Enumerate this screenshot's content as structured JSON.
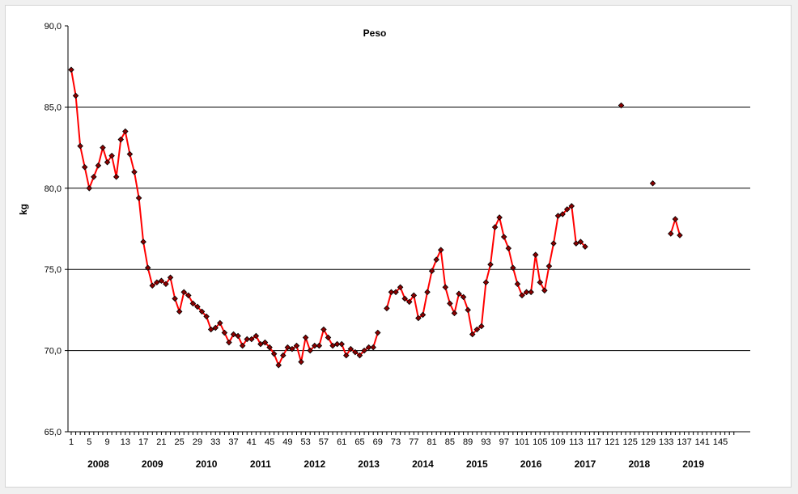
{
  "chart_data": {
    "type": "line",
    "title": "Peso",
    "ylabel": "kg",
    "xlabel": "",
    "ylim": [
      65,
      90
    ],
    "ytick_labels": [
      "65,0",
      "70,0",
      "75,0",
      "80,0",
      "85,0",
      "90,0"
    ],
    "ytick_values": [
      65,
      70,
      75,
      80,
      85,
      90
    ],
    "gridlines": [
      70,
      75,
      80,
      85
    ],
    "grid": true,
    "legend": "none",
    "xlim": [
      1,
      148
    ],
    "xtick_labels": [
      "1",
      "5",
      "9",
      "13",
      "17",
      "21",
      "25",
      "29",
      "33",
      "37",
      "41",
      "45",
      "49",
      "53",
      "57",
      "61",
      "65",
      "69",
      "73",
      "77",
      "81",
      "85",
      "89",
      "93",
      "97",
      "101",
      "105",
      "109",
      "113",
      "117",
      "121",
      "125",
      "129",
      "133",
      "137",
      "141",
      "145"
    ],
    "year_labels": [
      {
        "label": "2008",
        "x": 7
      },
      {
        "label": "2009",
        "x": 19
      },
      {
        "label": "2010",
        "x": 31
      },
      {
        "label": "2011",
        "x": 43
      },
      {
        "label": "2012",
        "x": 55
      },
      {
        "label": "2013",
        "x": 67
      },
      {
        "label": "2014",
        "x": 79
      },
      {
        "label": "2015",
        "x": 91
      },
      {
        "label": "2016",
        "x": 103
      },
      {
        "label": "2017",
        "x": 115
      },
      {
        "label": "2018",
        "x": 127
      },
      {
        "label": "2019",
        "x": 139
      }
    ],
    "series": [
      {
        "name": "",
        "color": "#ff0000",
        "marker_color": "#8b0000",
        "segments": [
          [
            [
              1,
              87.3
            ],
            [
              2,
              85.7
            ],
            [
              3,
              82.6
            ],
            [
              4,
              81.3
            ],
            [
              5,
              80.0
            ],
            [
              6,
              80.7
            ],
            [
              7,
              81.4
            ],
            [
              8,
              82.5
            ],
            [
              9,
              81.6
            ],
            [
              10,
              82.0
            ],
            [
              11,
              80.7
            ],
            [
              12,
              83.0
            ],
            [
              13,
              83.5
            ],
            [
              14,
              82.1
            ],
            [
              15,
              81.0
            ],
            [
              16,
              79.4
            ],
            [
              17,
              76.7
            ],
            [
              18,
              75.1
            ],
            [
              19,
              74.0
            ],
            [
              20,
              74.2
            ],
            [
              21,
              74.3
            ],
            [
              22,
              74.1
            ],
            [
              23,
              74.5
            ],
            [
              24,
              73.2
            ],
            [
              25,
              72.4
            ],
            [
              26,
              73.6
            ],
            [
              27,
              73.4
            ],
            [
              28,
              72.9
            ],
            [
              29,
              72.7
            ],
            [
              30,
              72.4
            ],
            [
              31,
              72.1
            ],
            [
              32,
              71.3
            ],
            [
              33,
              71.4
            ],
            [
              34,
              71.7
            ],
            [
              35,
              71.1
            ],
            [
              36,
              70.5
            ],
            [
              37,
              71.0
            ],
            [
              38,
              70.9
            ],
            [
              39,
              70.3
            ],
            [
              40,
              70.7
            ],
            [
              41,
              70.7
            ],
            [
              42,
              70.9
            ],
            [
              43,
              70.4
            ],
            [
              44,
              70.5
            ],
            [
              45,
              70.2
            ],
            [
              46,
              69.8
            ],
            [
              47,
              69.1
            ],
            [
              48,
              69.7
            ],
            [
              49,
              70.2
            ],
            [
              50,
              70.1
            ],
            [
              51,
              70.3
            ],
            [
              52,
              69.3
            ],
            [
              53,
              70.8
            ],
            [
              54,
              70.0
            ],
            [
              55,
              70.3
            ],
            [
              56,
              70.3
            ],
            [
              57,
              71.3
            ],
            [
              58,
              70.8
            ],
            [
              59,
              70.3
            ],
            [
              60,
              70.4
            ],
            [
              61,
              70.4
            ],
            [
              62,
              69.7
            ],
            [
              63,
              70.1
            ],
            [
              64,
              69.9
            ],
            [
              65,
              69.7
            ],
            [
              66,
              70.0
            ],
            [
              67,
              70.2
            ],
            [
              68,
              70.2
            ],
            [
              69,
              71.1
            ]
          ],
          [
            [
              71,
              72.6
            ],
            [
              72,
              73.6
            ],
            [
              73,
              73.6
            ],
            [
              74,
              73.9
            ],
            [
              75,
              73.2
            ],
            [
              76,
              73.0
            ],
            [
              77,
              73.4
            ],
            [
              78,
              72.0
            ],
            [
              79,
              72.2
            ],
            [
              80,
              73.6
            ],
            [
              81,
              74.9
            ],
            [
              82,
              75.6
            ],
            [
              83,
              76.2
            ],
            [
              84,
              73.9
            ],
            [
              85,
              72.9
            ],
            [
              86,
              72.3
            ],
            [
              87,
              73.5
            ],
            [
              88,
              73.3
            ],
            [
              89,
              72.5
            ],
            [
              90,
              71.0
            ],
            [
              91,
              71.3
            ],
            [
              92,
              71.5
            ],
            [
              93,
              74.2
            ],
            [
              94,
              75.3
            ],
            [
              95,
              77.6
            ],
            [
              96,
              78.2
            ],
            [
              97,
              77.0
            ],
            [
              98,
              76.3
            ],
            [
              99,
              75.1
            ],
            [
              100,
              74.1
            ],
            [
              101,
              73.4
            ],
            [
              102,
              73.6
            ],
            [
              103,
              73.6
            ],
            [
              104,
              75.9
            ],
            [
              105,
              74.2
            ],
            [
              106,
              73.7
            ],
            [
              107,
              75.2
            ],
            [
              108,
              76.6
            ],
            [
              109,
              78.3
            ],
            [
              110,
              78.4
            ],
            [
              111,
              78.7
            ],
            [
              112,
              78.9
            ],
            [
              113,
              76.6
            ],
            [
              114,
              76.7
            ],
            [
              115,
              76.4
            ]
          ],
          [
            [
              123,
              85.1
            ]
          ],
          [
            [
              130,
              80.3
            ]
          ],
          [
            [
              134,
              77.2
            ],
            [
              135,
              78.1
            ],
            [
              136,
              77.1
            ]
          ]
        ]
      }
    ]
  }
}
